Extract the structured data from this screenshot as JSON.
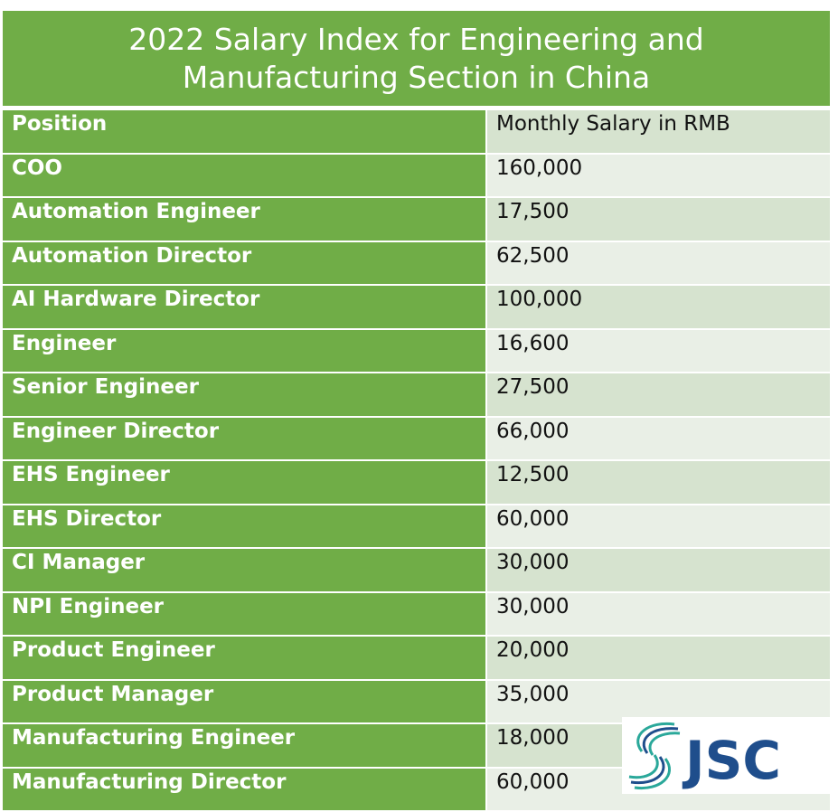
{
  "title_line1": "2022 Salary Index for Engineering and",
  "title_line2": "Manufacturing Section in China",
  "header": {
    "position": "Position",
    "salary": "Monthly Salary in RMB"
  },
  "rows": [
    {
      "position": "COO",
      "salary": "160,000"
    },
    {
      "position": "Automation Engineer",
      "salary": "17,500"
    },
    {
      "position": "Automation Director",
      "salary": "62,500"
    },
    {
      "position": "AI Hardware Director",
      "salary": "100,000"
    },
    {
      "position": "Engineer",
      "salary": "16,600"
    },
    {
      "position": "Senior Engineer",
      "salary": "27,500"
    },
    {
      "position": "Engineer Director",
      "salary": "66,000"
    },
    {
      "position": "EHS Engineer",
      "salary": "12,500"
    },
    {
      "position": "EHS Director",
      "salary": "60,000"
    },
    {
      "position": "CI Manager",
      "salary": "30,000"
    },
    {
      "position": "NPI Engineer",
      "salary": "30,000"
    },
    {
      "position": "Product Engineer",
      "salary": "20,000"
    },
    {
      "position": "Product Manager",
      "salary": "35,000"
    },
    {
      "position": "Manufacturing Engineer",
      "salary": "18,000"
    },
    {
      "position": "Manufacturing Director",
      "salary": "60,000"
    }
  ],
  "logo": {
    "text": "JSC",
    "color": "#1f4e8c",
    "accent": "#2aa89a"
  },
  "colors": {
    "green": "#70ad47",
    "band_dark": "#d6e3cf",
    "band_light": "#e9efe6"
  }
}
